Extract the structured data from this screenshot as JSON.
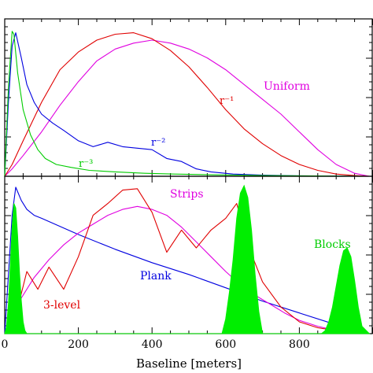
{
  "chart_data": [
    {
      "type": "line",
      "panel": "top",
      "xlabel": "",
      "ylabel": "",
      "xlim": [
        0,
        1000
      ],
      "ylim": [
        0,
        1.0
      ],
      "grid": false,
      "legend": "inline labels",
      "series": [
        {
          "name": "Uniform",
          "color": "#e000e0",
          "x": [
            0,
            20,
            50,
            100,
            150,
            200,
            250,
            300,
            350,
            400,
            450,
            500,
            550,
            600,
            650,
            700,
            750,
            800,
            850,
            900,
            950,
            990
          ],
          "y": [
            0.0,
            0.05,
            0.14,
            0.3,
            0.48,
            0.64,
            0.78,
            0.86,
            0.9,
            0.92,
            0.9,
            0.86,
            0.8,
            0.72,
            0.62,
            0.52,
            0.42,
            0.3,
            0.18,
            0.08,
            0.02,
            0.0
          ]
        },
        {
          "name": "r⁻¹",
          "color": "#e00000",
          "x": [
            0,
            20,
            50,
            100,
            150,
            200,
            250,
            300,
            350,
            400,
            450,
            500,
            550,
            600,
            650,
            700,
            750,
            800,
            850,
            900,
            950,
            990
          ],
          "y": [
            0.0,
            0.08,
            0.24,
            0.5,
            0.72,
            0.84,
            0.92,
            0.96,
            0.97,
            0.93,
            0.85,
            0.74,
            0.6,
            0.45,
            0.32,
            0.22,
            0.14,
            0.08,
            0.04,
            0.015,
            0.005,
            0.0
          ]
        },
        {
          "name": "r⁻²",
          "color": "#0000e0",
          "x": [
            0,
            10,
            20,
            30,
            45,
            60,
            80,
            100,
            130,
            160,
            200,
            240,
            280,
            320,
            360,
            400,
            440,
            480,
            520,
            560,
            620,
            700,
            800,
            900,
            990
          ],
          "y": [
            0.0,
            0.5,
            0.88,
            0.97,
            0.8,
            0.62,
            0.5,
            0.42,
            0.36,
            0.31,
            0.24,
            0.2,
            0.23,
            0.2,
            0.19,
            0.18,
            0.12,
            0.1,
            0.05,
            0.03,
            0.015,
            0.008,
            0.003,
            0.001,
            0.0
          ]
        },
        {
          "name": "r⁻³",
          "color": "#00cc00",
          "x": [
            0,
            10,
            20,
            25,
            35,
            50,
            70,
            90,
            110,
            140,
            180,
            230,
            300,
            380,
            460,
            560,
            700,
            850,
            990
          ],
          "y": [
            0.0,
            0.6,
            0.98,
            0.96,
            0.7,
            0.45,
            0.28,
            0.18,
            0.12,
            0.08,
            0.06,
            0.04,
            0.03,
            0.02,
            0.015,
            0.01,
            0.005,
            0.002,
            0.0
          ]
        }
      ]
    },
    {
      "type": "line",
      "panel": "bottom",
      "xlabel": "Baseline [meters]",
      "ylabel": "",
      "xlim": [
        0,
        1000
      ],
      "ylim": [
        0,
        1.0
      ],
      "xticks": [
        "0",
        "200",
        "400",
        "600",
        "800"
      ],
      "xtick_values": [
        0,
        200,
        400,
        600,
        800
      ],
      "grid": false,
      "legend": "inline labels",
      "series": [
        {
          "name": "Plank",
          "color": "#0000e0",
          "x": [
            0,
            10,
            20,
            30,
            45,
            60,
            80,
            100,
            200,
            300,
            400,
            500,
            600,
            700,
            800,
            900,
            990
          ],
          "y": [
            0.0,
            0.4,
            0.8,
            0.99,
            0.9,
            0.84,
            0.8,
            0.78,
            0.67,
            0.57,
            0.48,
            0.4,
            0.31,
            0.22,
            0.14,
            0.06,
            0.0
          ]
        },
        {
          "name": "Strips",
          "color": "#e000e0",
          "x": [
            0,
            40,
            80,
            120,
            160,
            200,
            240,
            280,
            320,
            360,
            400,
            440,
            480,
            520,
            560,
            600,
            640,
            680,
            720,
            760,
            800,
            850,
            900,
            950,
            990
          ],
          "y": [
            0.0,
            0.22,
            0.38,
            0.5,
            0.6,
            0.68,
            0.74,
            0.8,
            0.84,
            0.86,
            0.84,
            0.8,
            0.72,
            0.62,
            0.52,
            0.42,
            0.33,
            0.26,
            0.2,
            0.14,
            0.09,
            0.05,
            0.02,
            0.005,
            0.0
          ]
        },
        {
          "name": "3-level",
          "color": "#e00000",
          "x": [
            0,
            30,
            60,
            90,
            120,
            160,
            200,
            240,
            280,
            320,
            360,
            400,
            440,
            480,
            520,
            560,
            600,
            630,
            660,
            700,
            750,
            800,
            850,
            900,
            950,
            990
          ],
          "y": [
            0.0,
            0.12,
            0.42,
            0.3,
            0.45,
            0.3,
            0.52,
            0.8,
            0.88,
            0.97,
            0.98,
            0.82,
            0.55,
            0.7,
            0.58,
            0.7,
            0.78,
            0.88,
            0.6,
            0.35,
            0.18,
            0.08,
            0.04,
            0.02,
            0.008,
            0.0
          ]
        },
        {
          "name": "Blocks",
          "color": "#00ee00",
          "type": "area",
          "x": [
            0,
            5,
            10,
            15,
            20,
            25,
            30,
            35,
            40,
            45,
            50,
            55,
            60,
            590,
            600,
            610,
            620,
            630,
            640,
            650,
            660,
            670,
            680,
            690,
            700,
            860,
            870,
            880,
            890,
            900,
            910,
            920,
            930,
            940,
            950,
            960,
            970,
            990
          ],
          "y": [
            0.0,
            0.05,
            0.2,
            0.45,
            0.72,
            0.88,
            0.85,
            0.66,
            0.42,
            0.22,
            0.08,
            0.02,
            0.0,
            0.0,
            0.1,
            0.28,
            0.5,
            0.78,
            0.95,
            1.0,
            0.92,
            0.7,
            0.4,
            0.15,
            0.0,
            0.0,
            0.02,
            0.08,
            0.18,
            0.32,
            0.46,
            0.56,
            0.58,
            0.52,
            0.36,
            0.18,
            0.05,
            0.0
          ]
        }
      ]
    }
  ]
}
